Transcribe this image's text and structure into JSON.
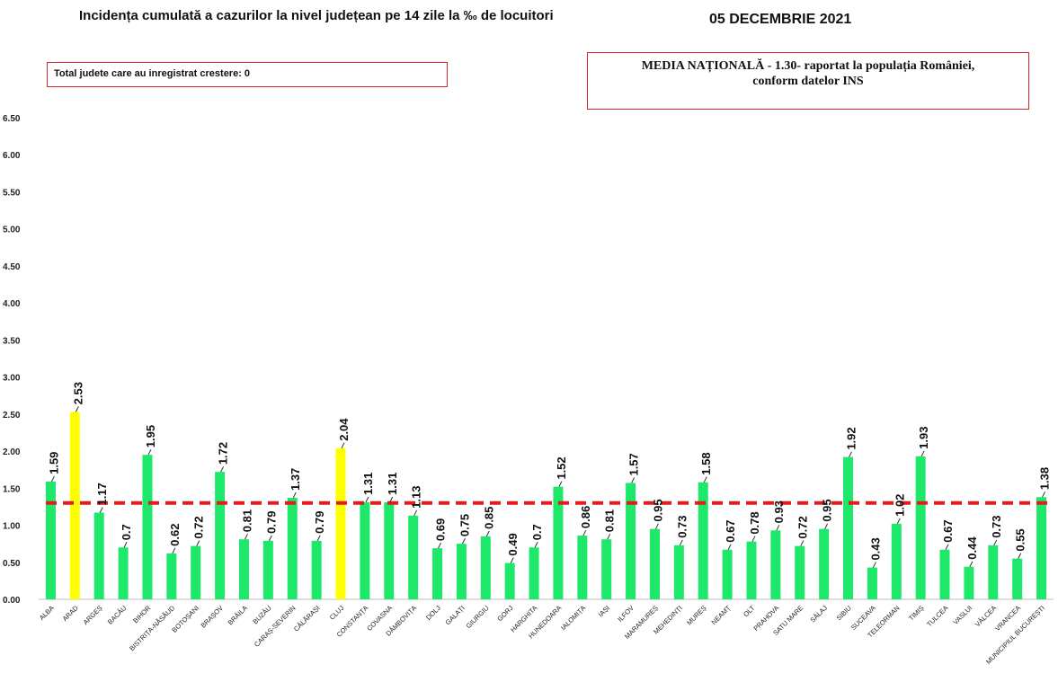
{
  "header": {
    "title": "Incidența cumulată a cazurilor la nivel județean pe 14 zile la ‰ de locuitori",
    "date": "05 DECEMBRIE 2021"
  },
  "info_box": {
    "text": "Total judete care au inregistrat crestere: 0"
  },
  "national_box": {
    "line1": "MEDIA NAȚIONALĂ - 1.30-  raportat la populația României,",
    "line2": "conform datelor INS"
  },
  "colors": {
    "normal_bar": "#1ee86a",
    "highlight_bar": "#ffff00",
    "average_line": "#e21b1b",
    "box_border": "#d9262c"
  },
  "chart_data": {
    "type": "bar",
    "ylim": [
      0,
      6.5
    ],
    "yticks": [
      "0.00",
      "0.50",
      "1.00",
      "1.50",
      "2.00",
      "2.50",
      "3.00",
      "3.50",
      "4.00",
      "4.50",
      "5.00",
      "5.50",
      "6.00",
      "6.50"
    ],
    "reference_line": 1.3,
    "categories": [
      "ALBA",
      "ARAD",
      "ARGEȘ",
      "BACĂU",
      "BIHOR",
      "BISTRIȚA-NĂSĂUD",
      "BOTOȘANI",
      "BRAȘOV",
      "BRĂILA",
      "BUZĂU",
      "CARAȘ-SEVERIN",
      "CĂLĂRAȘI",
      "CLUJ",
      "CONSTANȚA",
      "COVASNA",
      "DÂMBOVIȚA",
      "DOLJ",
      "GALAȚI",
      "GIURGIU",
      "GORJ",
      "HARGHITA",
      "HUNEDOARA",
      "IALOMIȚA",
      "IAȘI",
      "ILFOV",
      "MARAMUREȘ",
      "MEHEDINȚI",
      "MUREȘ",
      "NEAMȚ",
      "OLT",
      "PRAHOVA",
      "SATU MARE",
      "SĂLAJ",
      "SIBIU",
      "SUCEAVA",
      "TELEORMAN",
      "TIMIȘ",
      "TULCEA",
      "VASLUI",
      "VÂLCEA",
      "VRANCEA",
      "MUNICIPIUL BUCUREȘTI"
    ],
    "values": [
      1.59,
      2.53,
      1.17,
      0.7,
      1.95,
      0.62,
      0.72,
      1.72,
      0.81,
      0.79,
      1.37,
      0.79,
      2.04,
      1.31,
      1.31,
      1.13,
      0.69,
      0.75,
      0.85,
      0.49,
      0.7,
      1.52,
      0.86,
      0.81,
      1.57,
      0.95,
      0.73,
      1.58,
      0.67,
      0.78,
      0.93,
      0.72,
      0.95,
      1.92,
      0.43,
      1.02,
      1.93,
      0.67,
      0.44,
      0.73,
      0.55,
      1.38
    ],
    "labels": [
      "1.59",
      "2.53",
      "1.17",
      "0.7",
      "1.95",
      "0.62",
      "0.72",
      "1.72",
      "0.81",
      "0.79",
      "1.37",
      "0.79",
      "2.04",
      "1.31",
      "1.31",
      "1.13",
      "0.69",
      "0.75",
      "0.85",
      "0.49",
      "0.7",
      "1.52",
      "0.86",
      "0.81",
      "1.57",
      "0.95",
      "0.73",
      "1.58",
      "0.67",
      "0.78",
      "0.93",
      "0.72",
      "0.95",
      "1.92",
      "0.43",
      "1.02",
      "1.93",
      "0.67",
      "0.44",
      "0.73",
      "0.55",
      "1.38"
    ],
    "highlighted": [
      "ARAD",
      "CLUJ"
    ]
  }
}
